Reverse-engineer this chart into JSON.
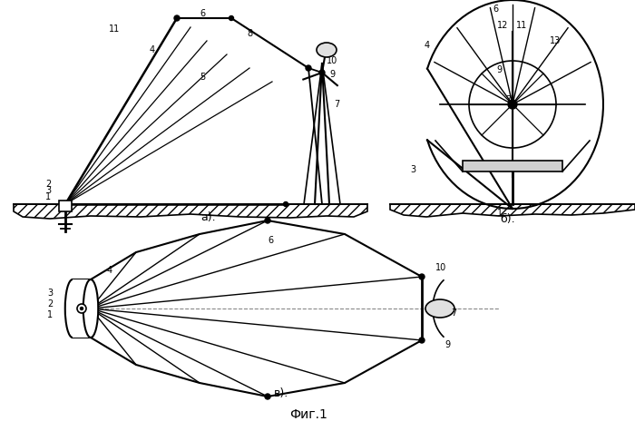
{
  "bg_color": "#ffffff",
  "fig_label": "Фиг.1",
  "label_a": "а).",
  "label_b": "б).",
  "label_v": "в)."
}
